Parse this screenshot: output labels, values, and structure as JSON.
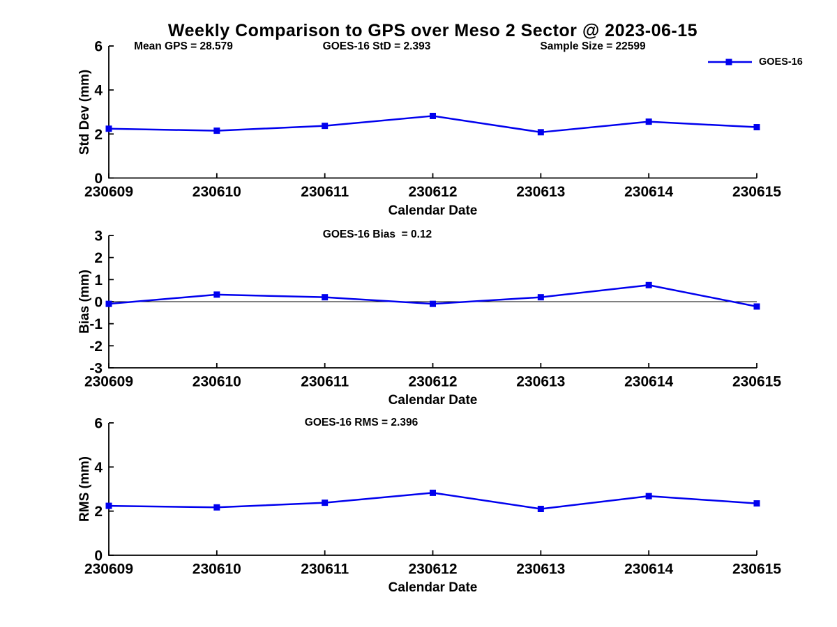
{
  "legend": {
    "label": "GOES-16",
    "position": "top-right"
  },
  "colors": {
    "series_line": "#0000EE",
    "axis": "#000000",
    "text": "#000000",
    "zero_line": "#000000",
    "background": "#FFFFFF"
  },
  "chart_data": [
    {
      "type": "line",
      "title": "Weekly Comparison to GPS over Meso 2 Sector @ 2023-06-15",
      "annotations": [
        "Mean GPS = 28.579",
        "GOES-16 StD = 2.393",
        "Sample Size = 22599"
      ],
      "xlabel": "Calendar Date",
      "ylabel": "Std Dev (mm)",
      "categories": [
        "230609",
        "230610",
        "230611",
        "230612",
        "230613",
        "230614",
        "230615"
      ],
      "series": [
        {
          "name": "GOES-16",
          "values": [
            2.24,
            2.15,
            2.37,
            2.82,
            2.08,
            2.56,
            2.31
          ]
        }
      ],
      "ylim": [
        0,
        6
      ],
      "yticks": [
        0,
        2,
        4,
        6
      ],
      "zero_line": false,
      "grid": false,
      "marker": "square"
    },
    {
      "type": "line",
      "title": "",
      "annotations": [
        "GOES-16 Bias  = 0.12"
      ],
      "xlabel": "Calendar Date",
      "ylabel": "Bias (mm)",
      "categories": [
        "230609",
        "230610",
        "230611",
        "230612",
        "230613",
        "230614",
        "230615"
      ],
      "series": [
        {
          "name": "GOES-16",
          "values": [
            -0.1,
            0.32,
            0.2,
            -0.1,
            0.2,
            0.75,
            -0.22
          ]
        }
      ],
      "ylim": [
        -3,
        3
      ],
      "yticks": [
        -3,
        -2,
        -1,
        0,
        1,
        2,
        3
      ],
      "zero_line": true,
      "grid": false,
      "marker": "square"
    },
    {
      "type": "line",
      "title": "",
      "annotations": [
        "GOES-16 RMS = 2.396"
      ],
      "xlabel": "Calendar Date",
      "ylabel": "RMS (mm)",
      "categories": [
        "230609",
        "230610",
        "230611",
        "230612",
        "230613",
        "230614",
        "230615"
      ],
      "series": [
        {
          "name": "GOES-16",
          "values": [
            2.24,
            2.17,
            2.38,
            2.83,
            2.1,
            2.68,
            2.35
          ]
        }
      ],
      "ylim": [
        0,
        6
      ],
      "yticks": [
        0,
        2,
        4,
        6
      ],
      "zero_line": false,
      "grid": false,
      "marker": "square"
    }
  ]
}
